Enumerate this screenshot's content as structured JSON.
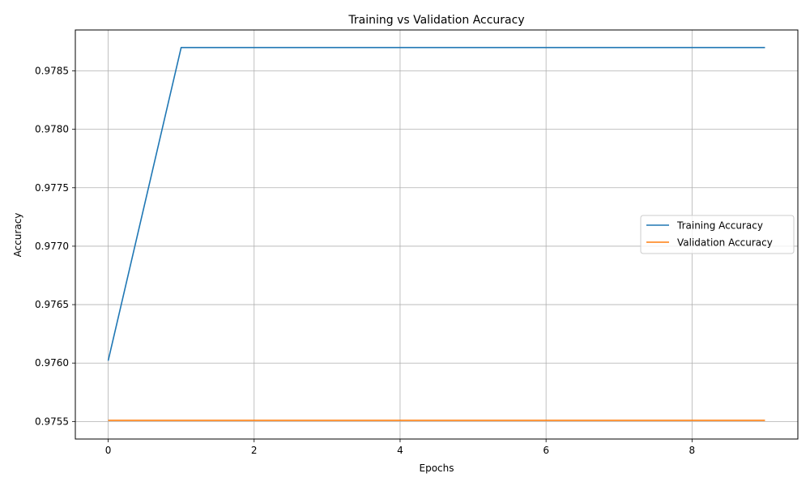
{
  "chart_data": {
    "type": "line",
    "title": "Training vs Validation Accuracy",
    "xlabel": "Epochs",
    "ylabel": "Accuracy",
    "x": [
      0,
      1,
      2,
      3,
      4,
      5,
      6,
      7,
      8,
      9
    ],
    "xlim": [
      -0.45,
      9.45
    ],
    "ylim": [
      0.97535,
      0.97885
    ],
    "xticks": [
      0,
      2,
      4,
      6,
      8
    ],
    "xtick_labels": [
      "0",
      "2",
      "4",
      "6",
      "8"
    ],
    "yticks": [
      0.9755,
      0.976,
      0.9765,
      0.977,
      0.9775,
      0.978,
      0.9785
    ],
    "ytick_labels": [
      "0.9755",
      "0.9760",
      "0.9765",
      "0.9770",
      "0.9775",
      "0.9780",
      "0.9785"
    ],
    "grid": true,
    "legend_position": "center-right",
    "series": [
      {
        "name": "Training Accuracy",
        "color": "#1f77b4",
        "values": [
          0.97602,
          0.9787,
          0.9787,
          0.9787,
          0.9787,
          0.9787,
          0.9787,
          0.9787,
          0.9787,
          0.9787
        ]
      },
      {
        "name": "Validation Accuracy",
        "color": "#ff7f0e",
        "values": [
          0.97551,
          0.97551,
          0.97551,
          0.97551,
          0.97551,
          0.97551,
          0.97551,
          0.97551,
          0.97551,
          0.97551
        ]
      }
    ]
  }
}
